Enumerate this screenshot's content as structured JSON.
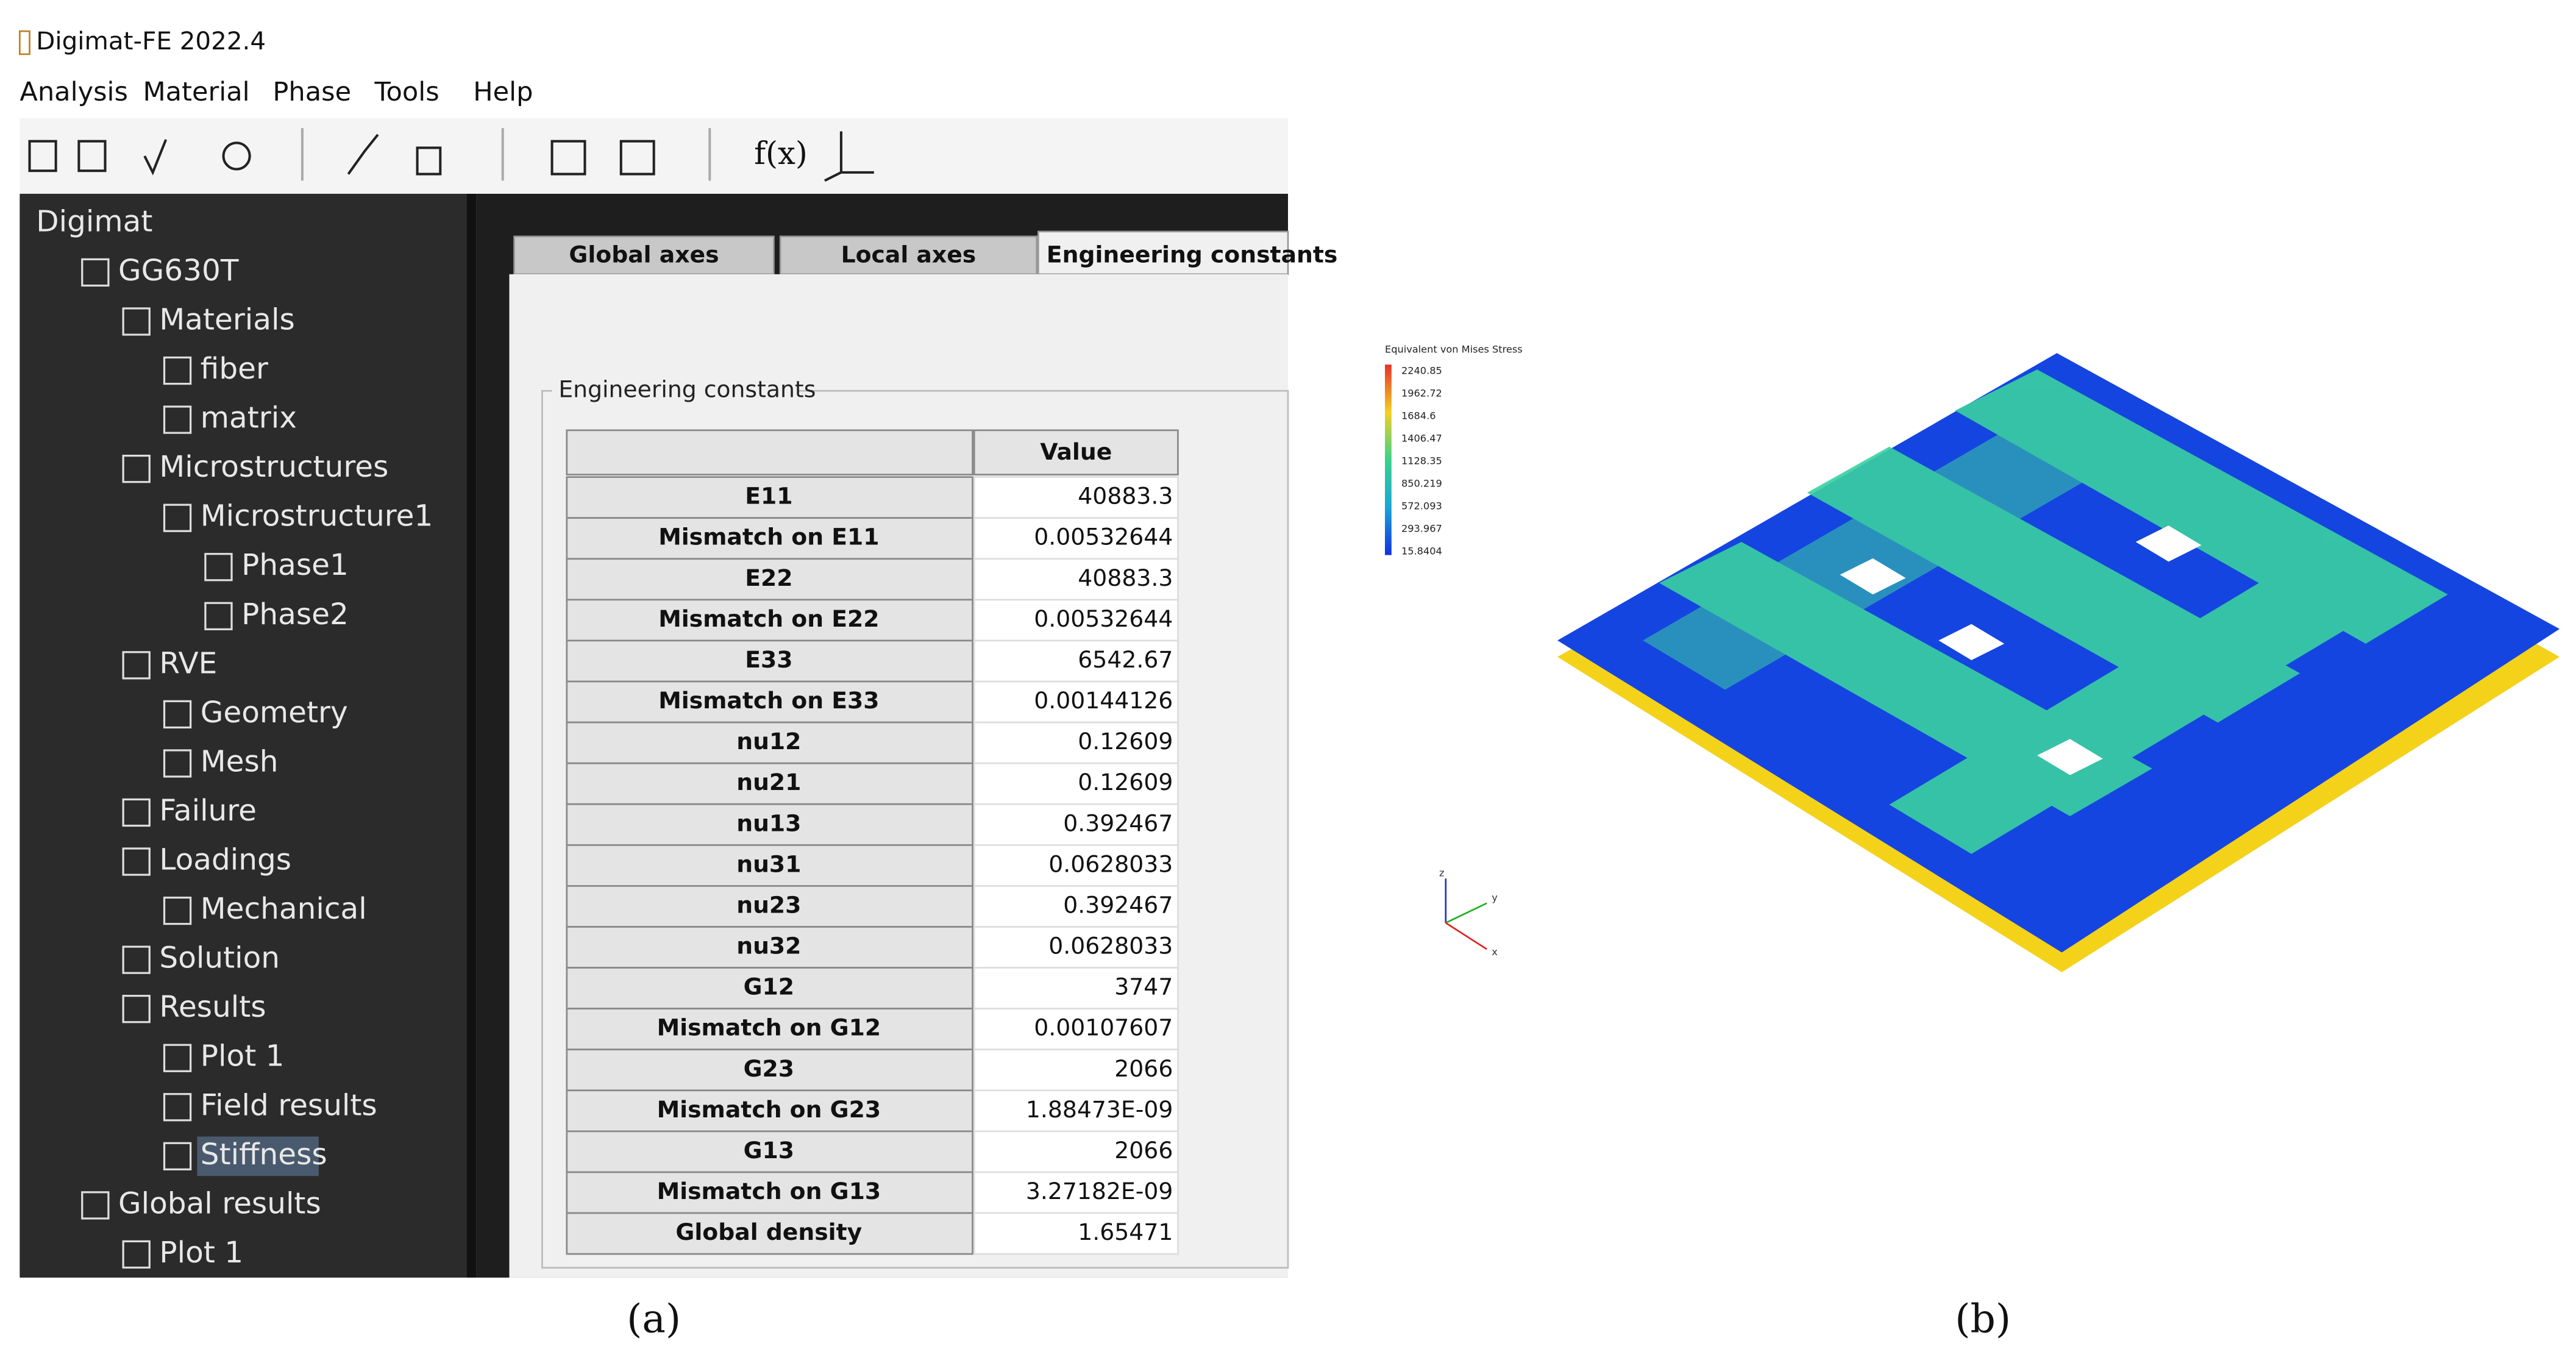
{
  "window": {
    "title": "Digimat-FE 2022.4"
  },
  "menu": [
    "Analysis",
    "Material",
    "Phase",
    "Tools",
    "Help"
  ],
  "toolbar": {
    "formula": "f(x)"
  },
  "tree": [
    {
      "label": "Digimat",
      "level": 0
    },
    {
      "label": "GG630T",
      "level": 1
    },
    {
      "label": "Materials",
      "level": 2
    },
    {
      "label": "fiber",
      "level": 3
    },
    {
      "label": "matrix",
      "level": 3
    },
    {
      "label": "Microstructures",
      "level": 2
    },
    {
      "label": "Microstructure1",
      "level": 3
    },
    {
      "label": "Phase1",
      "level": 4
    },
    {
      "label": "Phase2",
      "level": 4
    },
    {
      "label": "RVE",
      "level": 2
    },
    {
      "label": "Geometry",
      "level": 3
    },
    {
      "label": "Mesh",
      "level": 3
    },
    {
      "label": "Failure",
      "level": 2
    },
    {
      "label": "Loadings",
      "level": 2
    },
    {
      "label": "Mechanical",
      "level": 3
    },
    {
      "label": "Solution",
      "level": 2
    },
    {
      "label": "Results",
      "level": 2
    },
    {
      "label": "Plot 1",
      "level": 3
    },
    {
      "label": "Field results",
      "level": 3
    },
    {
      "label": "Stiffness",
      "level": 3,
      "selected": true
    },
    {
      "label": "Global results",
      "level": 1
    },
    {
      "label": "Plot 1",
      "level": 2
    }
  ],
  "tabs": [
    {
      "label": "Global axes"
    },
    {
      "label": "Local axes"
    },
    {
      "label": "Engineering constants",
      "active": true
    }
  ],
  "group": "Engineering constants",
  "table": {
    "header": "Value",
    "rows": [
      [
        "E11",
        "40883.3"
      ],
      [
        "Mismatch on E11",
        "0.00532644"
      ],
      [
        "E22",
        "40883.3"
      ],
      [
        "Mismatch on E22",
        "0.00532644"
      ],
      [
        "E33",
        "6542.67"
      ],
      [
        "Mismatch on E33",
        "0.00144126"
      ],
      [
        "nu12",
        "0.12609"
      ],
      [
        "nu21",
        "0.12609"
      ],
      [
        "nu13",
        "0.392467"
      ],
      [
        "nu31",
        "0.0628033"
      ],
      [
        "nu23",
        "0.392467"
      ],
      [
        "nu32",
        "0.0628033"
      ],
      [
        "G12",
        "3747"
      ],
      [
        "Mismatch on G12",
        "0.00107607"
      ],
      [
        "G23",
        "2066"
      ],
      [
        "Mismatch on G23",
        "1.88473E-09"
      ],
      [
        "G13",
        "2066"
      ],
      [
        "Mismatch on G13",
        "3.27182E-09"
      ],
      [
        "Global density",
        "1.65471"
      ]
    ]
  },
  "colorbar": {
    "title": "Equivalent von Mises Stress",
    "labels": [
      "2240.85",
      "1962.72",
      "1684.6",
      "1406.47",
      "1128.35",
      "850.219",
      "572.093",
      "293.967",
      "15.8404"
    ]
  },
  "triad": [
    "z",
    "y",
    "x"
  ],
  "captions": [
    "(a)",
    "(b)"
  ]
}
